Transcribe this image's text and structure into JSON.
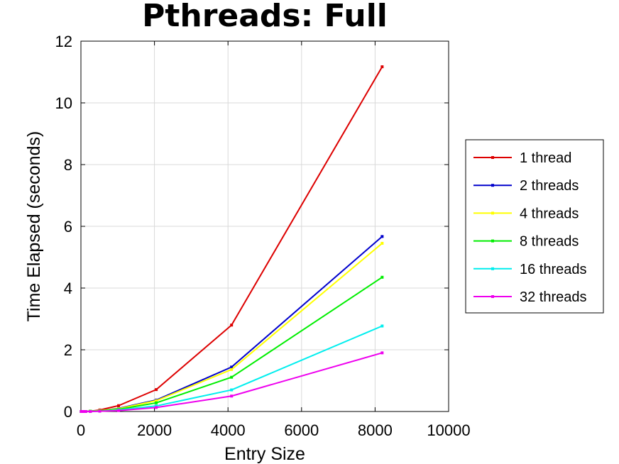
{
  "chart_data": {
    "type": "line",
    "title": "Pthreads: Full",
    "xlabel": "Entry Size",
    "ylabel": "Time Elapsed (seconds)",
    "xlim": [
      0,
      10000
    ],
    "ylim": [
      0,
      12
    ],
    "xticks": [
      "0",
      "2000",
      "4000",
      "6000",
      "8000",
      "10000"
    ],
    "yticks": [
      "0",
      "2",
      "4",
      "6",
      "8",
      "10",
      "12"
    ],
    "grid": true,
    "legend_position": "right",
    "x": [
      8,
      16,
      32,
      64,
      128,
      256,
      512,
      1024,
      2048,
      4096,
      8192
    ],
    "series": [
      {
        "name": "1 thread",
        "color": "#dd0000",
        "values": [
          0.0,
          0.0,
          0.0,
          0.0,
          0.0,
          0.01,
          0.05,
          0.19,
          0.71,
          2.8,
          11.17
        ]
      },
      {
        "name": "2 threads",
        "color": "#0000cc",
        "values": [
          0.0,
          0.0,
          0.0,
          0.0,
          0.0,
          0.01,
          0.03,
          0.1,
          0.37,
          1.44,
          5.67
        ]
      },
      {
        "name": "4 threads",
        "color": "#ffff00",
        "values": [
          0.0,
          0.0,
          0.0,
          0.0,
          0.0,
          0.01,
          0.03,
          0.09,
          0.35,
          1.36,
          5.45
        ]
      },
      {
        "name": "8 threads",
        "color": "#00ee00",
        "values": [
          0.0,
          0.0,
          0.0,
          0.0,
          0.0,
          0.01,
          0.02,
          0.07,
          0.28,
          1.11,
          4.35
        ]
      },
      {
        "name": "16 threads",
        "color": "#00eeee",
        "values": [
          0.0,
          0.0,
          0.0,
          0.0,
          0.0,
          0.0,
          0.01,
          0.05,
          0.18,
          0.7,
          2.77
        ]
      },
      {
        "name": "32 threads",
        "color": "#ee00ee",
        "values": [
          0.0,
          0.0,
          0.0,
          0.0,
          0.0,
          0.0,
          0.01,
          0.03,
          0.13,
          0.5,
          1.9
        ]
      }
    ]
  }
}
